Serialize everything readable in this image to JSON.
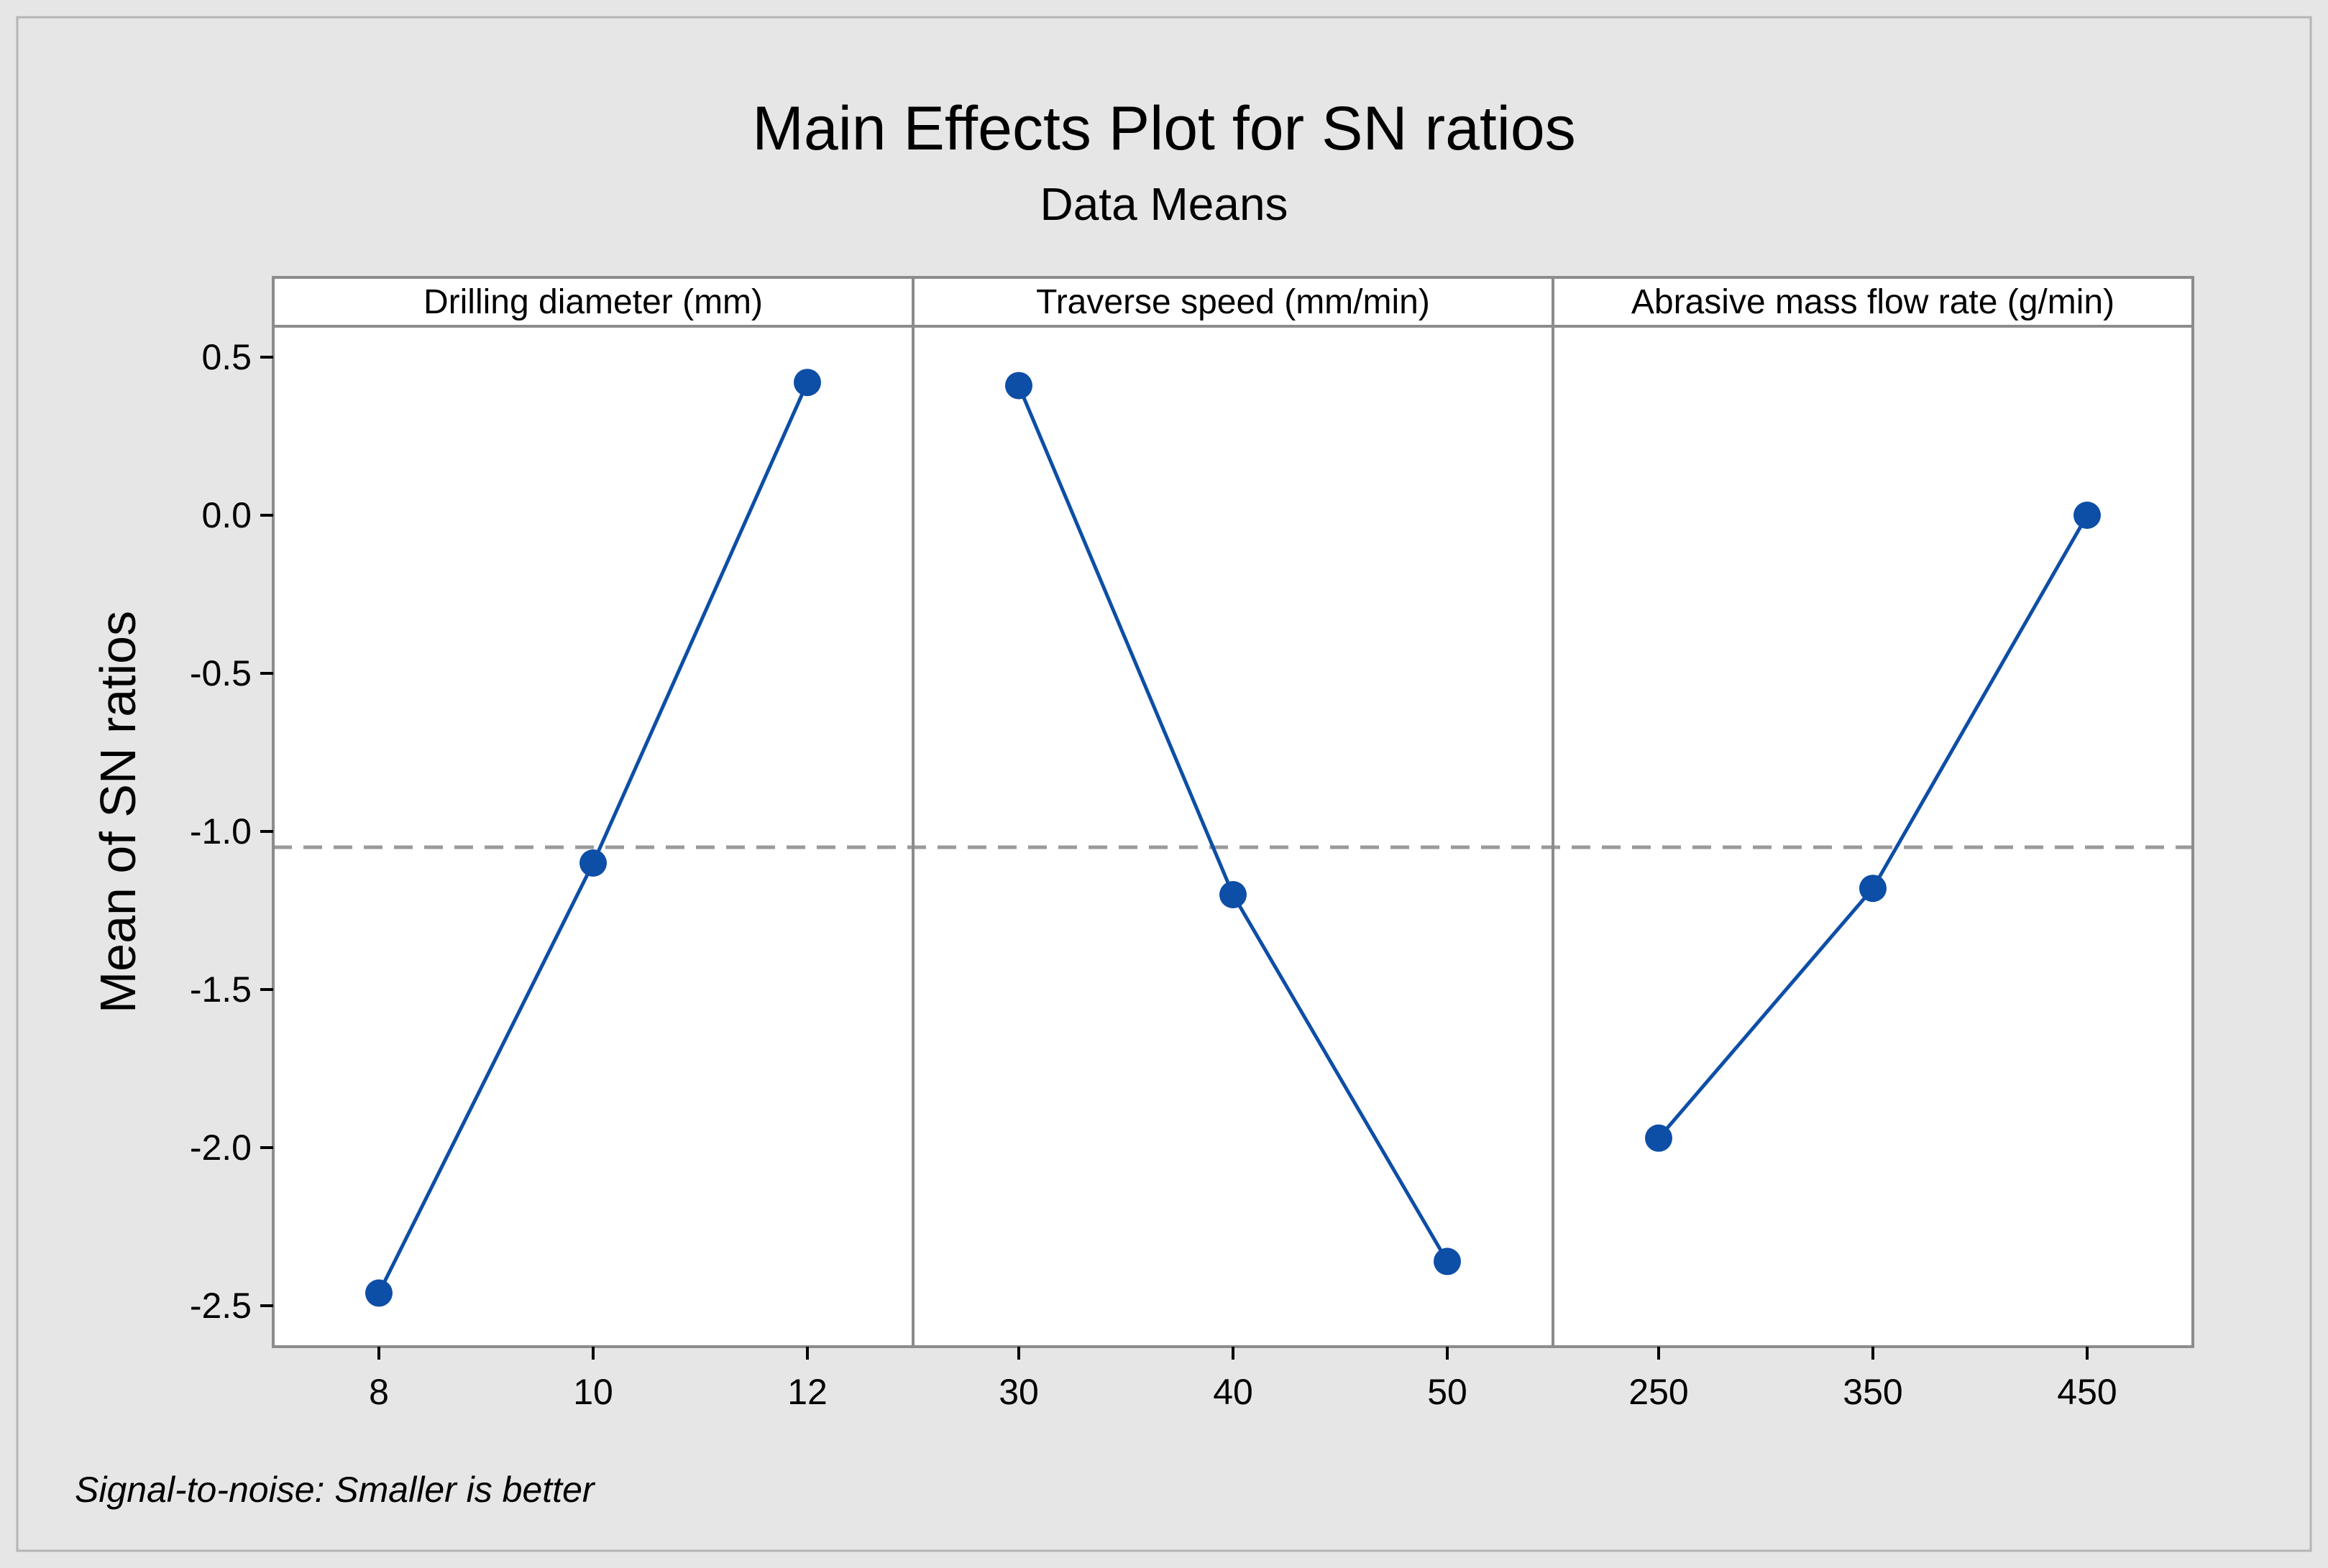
{
  "chart_data": {
    "type": "line",
    "title": "Main Effects Plot for SN ratios",
    "subtitle": "Data Means",
    "ylabel": "Mean of SN ratios",
    "ylim": [
      -2.6,
      0.75
    ],
    "yticks": [
      0.5,
      0.0,
      -0.5,
      -1.0,
      -1.5,
      -2.0,
      -2.5
    ],
    "ytick_labels": [
      "0.5",
      "0.0",
      "-0.5",
      "-1.0",
      "-1.5",
      "-2.0",
      "-2.5"
    ],
    "reference_line": -1.05,
    "footnote": "Signal-to-noise: Smaller is better",
    "panels": [
      {
        "name": "Drilling diameter (mm)",
        "levels": [
          "8",
          "10",
          "12"
        ],
        "values": [
          -2.46,
          -1.1,
          0.42
        ]
      },
      {
        "name": "Traverse speed (mm/min)",
        "levels": [
          "30",
          "40",
          "50"
        ],
        "values": [
          0.41,
          -1.2,
          -2.36
        ]
      },
      {
        "name": "Abrasive mass flow rate (g/min)",
        "levels": [
          "250",
          "350",
          "450"
        ],
        "values": [
          -1.97,
          -1.18,
          0.0
        ]
      }
    ],
    "colors": {
      "background": "#e6e6e6",
      "plot": "#ffffff",
      "series": "#0d4ea6",
      "reference": "#9a9a9a",
      "frame": "#8c8c8c"
    }
  }
}
